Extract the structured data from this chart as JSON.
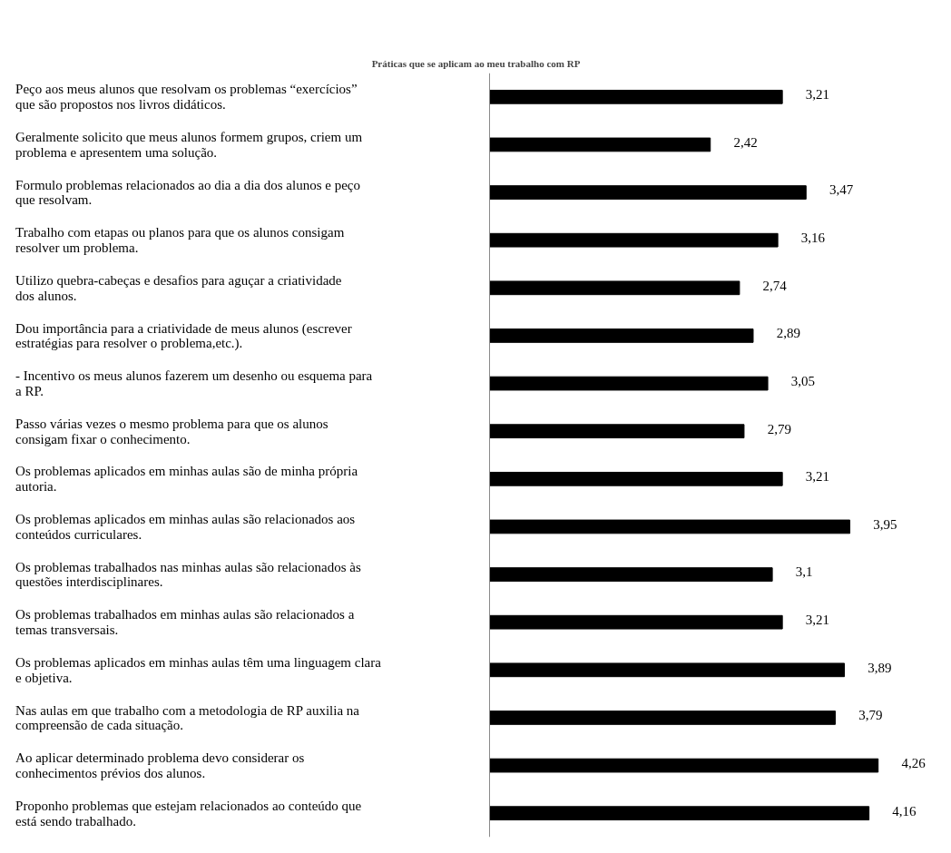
{
  "chart_data": {
    "type": "bar",
    "orientation": "horizontal",
    "title": "Práticas que se aplicam ao meu trabalho com RP",
    "categories": [
      "Peço aos meus alunos que resolvam os problemas “exercícios” que são propostos nos livros didáticos.",
      "Geralmente solicito que meus alunos formem grupos, criem um problema e apresentem uma solução.",
      "Formulo problemas relacionados ao dia a dia dos alunos e peço que resolvam.",
      "Trabalho com etapas ou planos para que os alunos consigam resolver um problema.",
      "Utilizo quebra-cabeças e desafios para aguçar a criatividade dos alunos.",
      "Dou importância para a criatividade de meus alunos (escrever estratégias para resolver o problema,etc.).",
      "- Incentivo os meus alunos fazerem um desenho ou esquema para a RP.",
      "Passo várias vezes o mesmo problema para que os alunos consigam fixar o conhecimento.",
      "Os problemas aplicados em minhas aulas são de minha própria autoria.",
      "Os problemas aplicados em minhas aulas são relacionados aos conteúdos curriculares.",
      "Os problemas trabalhados nas minhas aulas são relacionados às questões interdisciplinares.",
      "Os problemas trabalhados em minhas aulas são relacionados a temas transversais.",
      "Os problemas aplicados em minhas aulas têm uma linguagem clara e objetiva.",
      "Nas aulas em que trabalho com a metodologia de RP auxilia na compreensão de cada situação.",
      "Ao aplicar determinado problema devo considerar os conhecimentos prévios dos alunos.",
      "Proponho problemas que estejam relacionados ao conteúdo que está sendo trabalhado."
    ],
    "values": [
      3.21,
      2.42,
      3.47,
      3.16,
      2.74,
      2.89,
      3.05,
      2.79,
      3.21,
      3.95,
      3.1,
      3.21,
      3.89,
      3.79,
      4.26,
      4.16
    ],
    "value_labels": [
      "3,21",
      "2,42",
      "3,47",
      "3,16",
      "2,74",
      "2,89",
      "3,05",
      "2,79",
      "3,21",
      "3,95",
      "3,1",
      "3,21",
      "3,89",
      "3,79",
      "4,26",
      "4,16"
    ],
    "color": "#000000"
  }
}
